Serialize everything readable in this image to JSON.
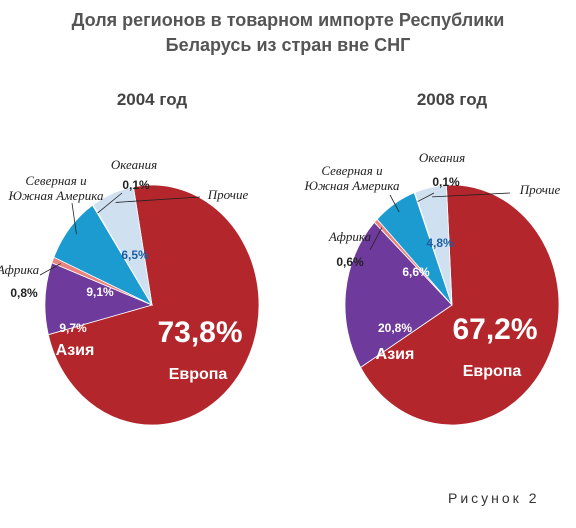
{
  "title": "Доля регионов в товарном импорте Республики Беларусь из стран вне СНГ",
  "figure_label": "Рисунок 2",
  "chart_data": [
    {
      "type": "pie",
      "title": "2004 год",
      "categories": [
        "Европа",
        "Азия",
        "Африка",
        "Северная и Южная Америка",
        "Океания",
        "Прочие"
      ],
      "values": [
        73.8,
        9.7,
        0.8,
        9.1,
        0.1,
        6.5
      ],
      "value_labels": [
        "73,8%",
        "9,7%",
        "0,8%",
        "9,1%",
        "0,1%",
        "6,5%"
      ],
      "colors": [
        "#b3262c",
        "#6e3a9c",
        "#e9847e",
        "#1b9bd0",
        "#f4f4f4",
        "#cfe0f0"
      ]
    },
    {
      "type": "pie",
      "title": "2008 год",
      "categories": [
        "Европа",
        "Азия",
        "Африка",
        "Северная и Южная Америка",
        "Океания",
        "Прочие"
      ],
      "values": [
        67.2,
        20.8,
        0.6,
        6.6,
        0.1,
        4.8
      ],
      "value_labels": [
        "67,2%",
        "20,8%",
        "0,6%",
        "6,6%",
        "0,1%",
        "4,8%"
      ],
      "colors": [
        "#b3262c",
        "#6e3a9c",
        "#e9847e",
        "#1b9bd0",
        "#f4f4f4",
        "#cfe0f0"
      ]
    }
  ]
}
